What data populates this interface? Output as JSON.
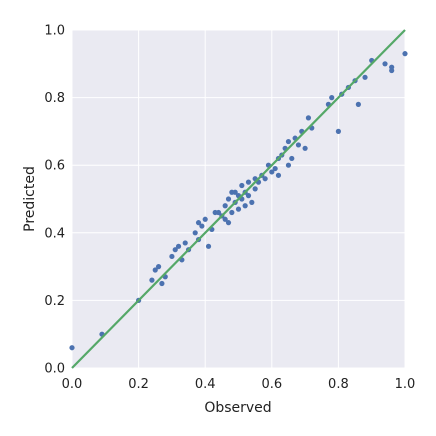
{
  "chart_data": {
    "type": "scatter",
    "xlabel": "Observed",
    "ylabel": "Predicted",
    "xlim": [
      0.0,
      1.0
    ],
    "ylim": [
      0.0,
      1.0
    ],
    "xticks": [
      "0.0",
      "0.2",
      "0.4",
      "0.6",
      "0.8",
      "1.0"
    ],
    "yticks": [
      "0.0",
      "0.2",
      "0.4",
      "0.6",
      "0.8",
      "1.0"
    ],
    "grid": true,
    "legend": "none",
    "colors": {
      "points": "#4C72B0",
      "line": "#55A868",
      "plot_bg": "#EAEAF2",
      "grid": "#FFFFFF"
    },
    "reference_line": {
      "x": [
        0.0,
        1.0
      ],
      "y": [
        0.0,
        1.0
      ]
    },
    "points": [
      [
        0.0,
        0.06
      ],
      [
        0.09,
        0.1
      ],
      [
        0.2,
        0.2
      ],
      [
        0.24,
        0.26
      ],
      [
        0.25,
        0.29
      ],
      [
        0.26,
        0.3
      ],
      [
        0.27,
        0.25
      ],
      [
        0.28,
        0.27
      ],
      [
        0.3,
        0.33
      ],
      [
        0.31,
        0.35
      ],
      [
        0.32,
        0.36
      ],
      [
        0.33,
        0.32
      ],
      [
        0.34,
        0.37
      ],
      [
        0.35,
        0.35
      ],
      [
        0.37,
        0.4
      ],
      [
        0.38,
        0.43
      ],
      [
        0.39,
        0.42
      ],
      [
        0.4,
        0.44
      ],
      [
        0.41,
        0.36
      ],
      [
        0.38,
        0.38
      ],
      [
        0.42,
        0.41
      ],
      [
        0.43,
        0.46
      ],
      [
        0.44,
        0.46
      ],
      [
        0.45,
        0.45
      ],
      [
        0.46,
        0.44
      ],
      [
        0.46,
        0.48
      ],
      [
        0.47,
        0.5
      ],
      [
        0.47,
        0.43
      ],
      [
        0.48,
        0.52
      ],
      [
        0.48,
        0.46
      ],
      [
        0.49,
        0.49
      ],
      [
        0.49,
        0.52
      ],
      [
        0.5,
        0.47
      ],
      [
        0.5,
        0.51
      ],
      [
        0.51,
        0.5
      ],
      [
        0.51,
        0.54
      ],
      [
        0.52,
        0.52
      ],
      [
        0.52,
        0.48
      ],
      [
        0.53,
        0.55
      ],
      [
        0.53,
        0.51
      ],
      [
        0.54,
        0.49
      ],
      [
        0.55,
        0.56
      ],
      [
        0.55,
        0.53
      ],
      [
        0.56,
        0.55
      ],
      [
        0.57,
        0.57
      ],
      [
        0.58,
        0.56
      ],
      [
        0.59,
        0.6
      ],
      [
        0.6,
        0.58
      ],
      [
        0.61,
        0.59
      ],
      [
        0.62,
        0.62
      ],
      [
        0.62,
        0.57
      ],
      [
        0.63,
        0.63
      ],
      [
        0.64,
        0.65
      ],
      [
        0.65,
        0.67
      ],
      [
        0.65,
        0.6
      ],
      [
        0.66,
        0.62
      ],
      [
        0.67,
        0.68
      ],
      [
        0.68,
        0.66
      ],
      [
        0.69,
        0.7
      ],
      [
        0.7,
        0.65
      ],
      [
        0.71,
        0.74
      ],
      [
        0.72,
        0.71
      ],
      [
        0.77,
        0.78
      ],
      [
        0.78,
        0.8
      ],
      [
        0.8,
        0.7
      ],
      [
        0.81,
        0.81
      ],
      [
        0.83,
        0.83
      ],
      [
        0.85,
        0.85
      ],
      [
        0.86,
        0.78
      ],
      [
        0.88,
        0.86
      ],
      [
        0.9,
        0.91
      ],
      [
        0.94,
        0.9
      ],
      [
        0.96,
        0.88
      ],
      [
        0.96,
        0.89
      ],
      [
        1.0,
        0.93
      ]
    ]
  }
}
